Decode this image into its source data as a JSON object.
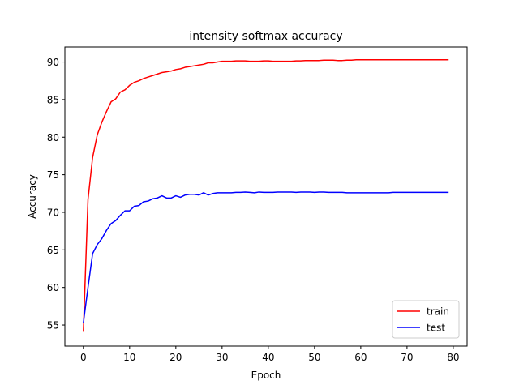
{
  "chart_data": {
    "type": "line",
    "title": "intensity softmax accuracy",
    "xlabel": "Epoch",
    "ylabel": "Accuracy",
    "xlim": [
      -4.0,
      83.0
    ],
    "ylim": [
      52.2,
      92.0
    ],
    "xticks": [
      0,
      10,
      20,
      30,
      40,
      50,
      60,
      70,
      80
    ],
    "yticks": [
      55,
      60,
      65,
      70,
      75,
      80,
      85,
      90
    ],
    "grid": false,
    "legend_position": "bottom-right",
    "series": [
      {
        "name": "train",
        "color": "#ff0000",
        "x": [
          0,
          1,
          2,
          3,
          4,
          5,
          6,
          7,
          8,
          9,
          10,
          11,
          12,
          13,
          14,
          15,
          16,
          17,
          18,
          19,
          20,
          21,
          22,
          23,
          24,
          25,
          26,
          27,
          28,
          29,
          30,
          31,
          32,
          33,
          34,
          35,
          36,
          37,
          38,
          39,
          40,
          41,
          42,
          43,
          44,
          45,
          46,
          47,
          48,
          49,
          50,
          51,
          52,
          53,
          54,
          55,
          56,
          57,
          58,
          59,
          60,
          61,
          62,
          63,
          64,
          65,
          66,
          67,
          68,
          69,
          70,
          71,
          72,
          73,
          74,
          75,
          76,
          77,
          78,
          79
        ],
        "values": [
          54.1,
          71.7,
          77.3,
          80.3,
          82.0,
          83.4,
          84.7,
          85.1,
          86.0,
          86.3,
          86.9,
          87.3,
          87.5,
          87.8,
          88.0,
          88.2,
          88.4,
          88.6,
          88.7,
          88.8,
          89.0,
          89.1,
          89.3,
          89.4,
          89.5,
          89.6,
          89.7,
          89.9,
          89.9,
          90.0,
          90.1,
          90.1,
          90.1,
          90.15,
          90.15,
          90.15,
          90.1,
          90.1,
          90.1,
          90.15,
          90.15,
          90.1,
          90.1,
          90.1,
          90.1,
          90.1,
          90.15,
          90.15,
          90.2,
          90.2,
          90.2,
          90.2,
          90.25,
          90.25,
          90.25,
          90.2,
          90.2,
          90.25,
          90.25,
          90.3,
          90.3,
          90.3,
          90.3,
          90.3,
          90.3,
          90.3,
          90.3,
          90.3,
          90.3,
          90.3,
          90.3,
          90.3,
          90.3,
          90.3,
          90.3,
          90.3,
          90.3,
          90.3,
          90.3,
          90.3
        ]
      },
      {
        "name": "test",
        "color": "#0000ff",
        "x": [
          0,
          1,
          2,
          3,
          4,
          5,
          6,
          7,
          8,
          9,
          10,
          11,
          12,
          13,
          14,
          15,
          16,
          17,
          18,
          19,
          20,
          21,
          22,
          23,
          24,
          25,
          26,
          27,
          28,
          29,
          30,
          31,
          32,
          33,
          34,
          35,
          36,
          37,
          38,
          39,
          40,
          41,
          42,
          43,
          44,
          45,
          46,
          47,
          48,
          49,
          50,
          51,
          52,
          53,
          54,
          55,
          56,
          57,
          58,
          59,
          60,
          61,
          62,
          63,
          64,
          65,
          66,
          67,
          68,
          69,
          70,
          71,
          72,
          73,
          74,
          75,
          76,
          77,
          78,
          79
        ],
        "values": [
          55.3,
          60.0,
          64.5,
          65.7,
          66.5,
          67.6,
          68.5,
          68.9,
          69.6,
          70.2,
          70.2,
          70.8,
          70.9,
          71.4,
          71.5,
          71.8,
          71.9,
          72.2,
          71.9,
          71.9,
          72.2,
          72.0,
          72.3,
          72.4,
          72.4,
          72.3,
          72.6,
          72.3,
          72.5,
          72.6,
          72.6,
          72.6,
          72.6,
          72.65,
          72.65,
          72.7,
          72.65,
          72.6,
          72.7,
          72.65,
          72.65,
          72.65,
          72.7,
          72.7,
          72.7,
          72.7,
          72.65,
          72.7,
          72.7,
          72.7,
          72.65,
          72.7,
          72.7,
          72.65,
          72.65,
          72.65,
          72.65,
          72.6,
          72.6,
          72.6,
          72.6,
          72.6,
          72.6,
          72.6,
          72.6,
          72.6,
          72.6,
          72.65,
          72.65,
          72.65,
          72.65,
          72.65,
          72.65,
          72.65,
          72.65,
          72.65,
          72.65,
          72.65,
          72.65,
          72.65
        ]
      }
    ]
  }
}
